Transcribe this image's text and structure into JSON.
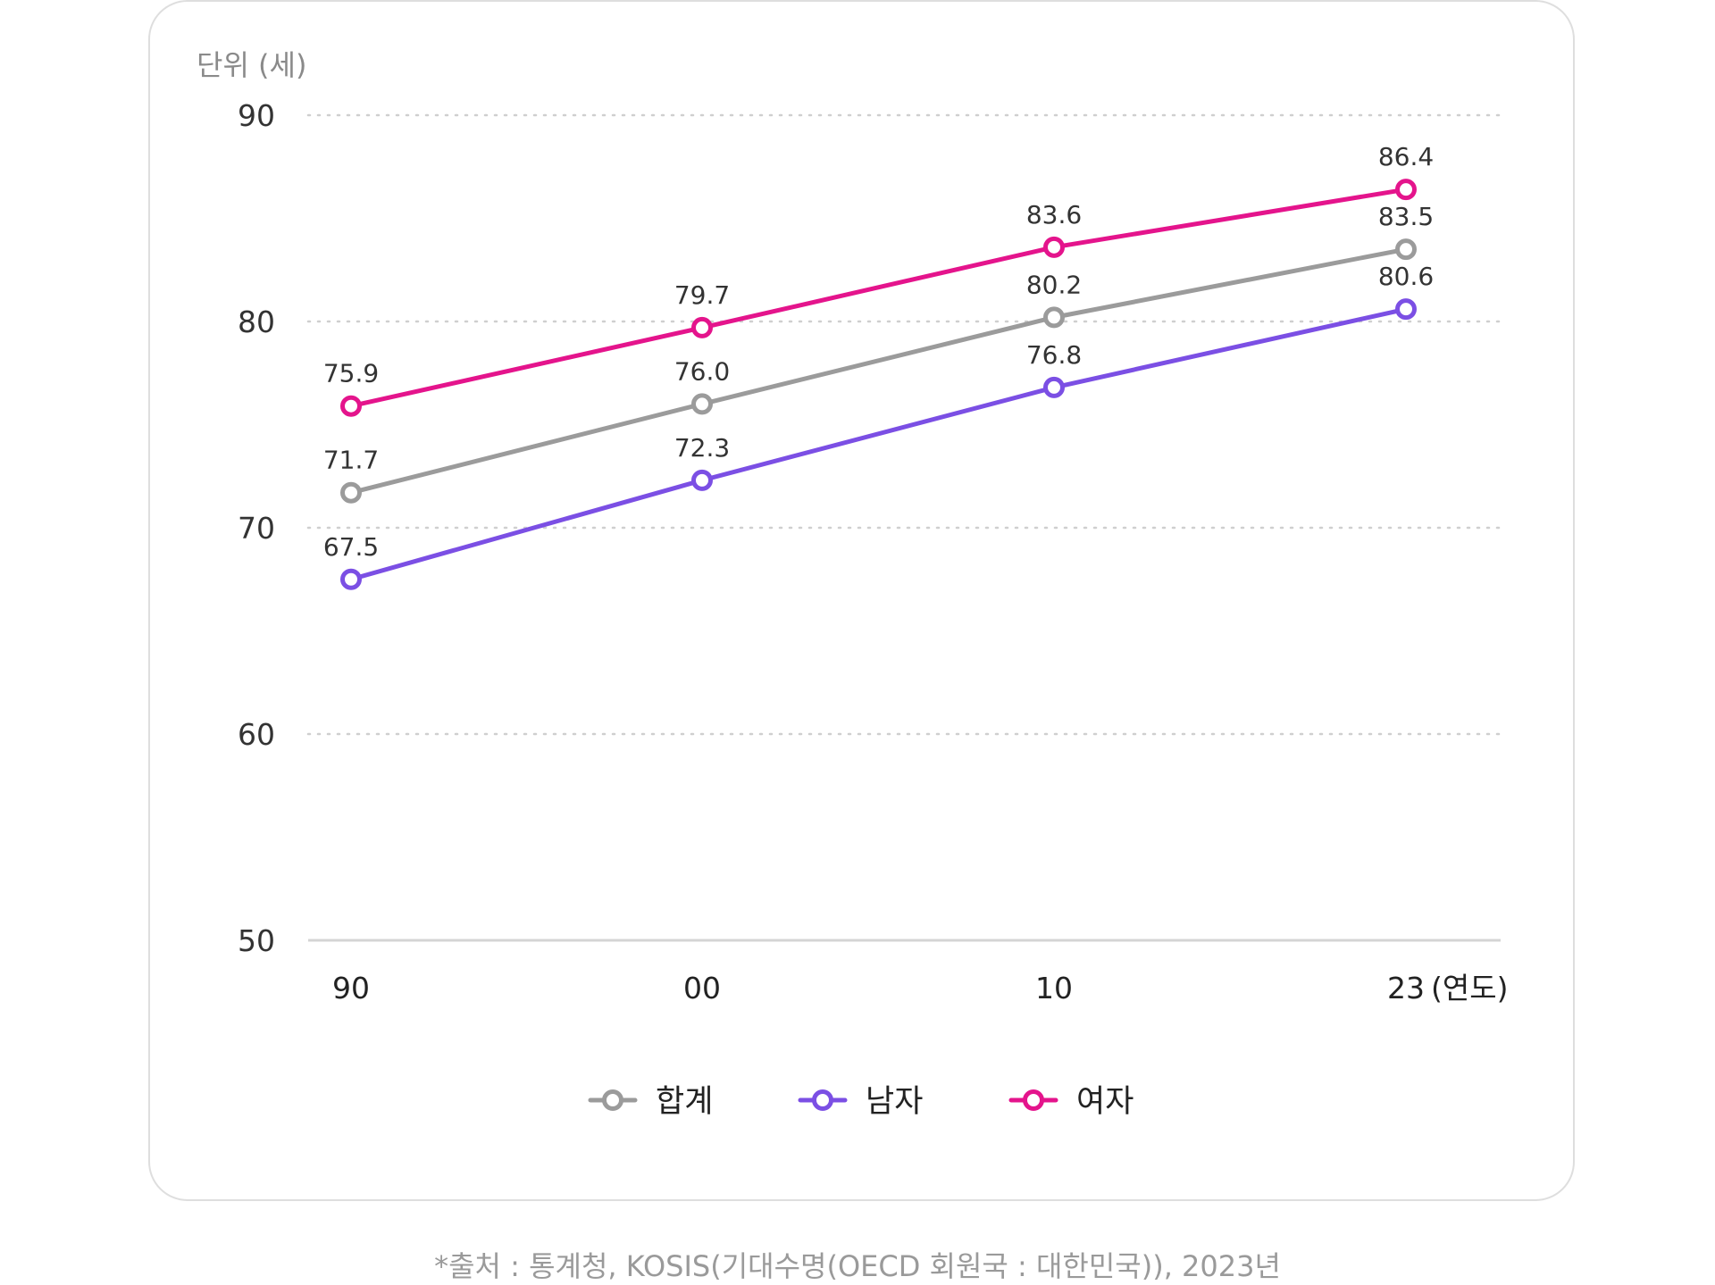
{
  "chart_data": {
    "type": "line",
    "unit_label": "단위 (세)",
    "x_unit_label": "(연도)",
    "categories": [
      "90",
      "00",
      "10",
      "23"
    ],
    "ylim": [
      50,
      90
    ],
    "yticks": [
      90,
      80,
      70,
      60,
      50
    ],
    "grid": true,
    "legend_position": "bottom",
    "series": [
      {
        "name": "합계",
        "color": "#9b9b9b",
        "values": [
          71.7,
          76.0,
          80.2,
          83.5
        ],
        "labels": [
          "71.7",
          "76.0",
          "80.2",
          "83.5"
        ]
      },
      {
        "name": "남자",
        "color": "#7b4fe4",
        "values": [
          67.5,
          72.3,
          76.8,
          80.6
        ],
        "labels": [
          "67.5",
          "72.3",
          "76.8",
          "80.6"
        ]
      },
      {
        "name": "여자",
        "color": "#e4148c",
        "values": [
          75.9,
          79.7,
          83.6,
          86.4
        ],
        "labels": [
          "75.9",
          "79.7",
          "83.6",
          "86.4"
        ]
      }
    ]
  },
  "source": "*출처 : 통계청, KOSIS(기대수명(OECD 회원국 : 대한민국)), 2023년"
}
